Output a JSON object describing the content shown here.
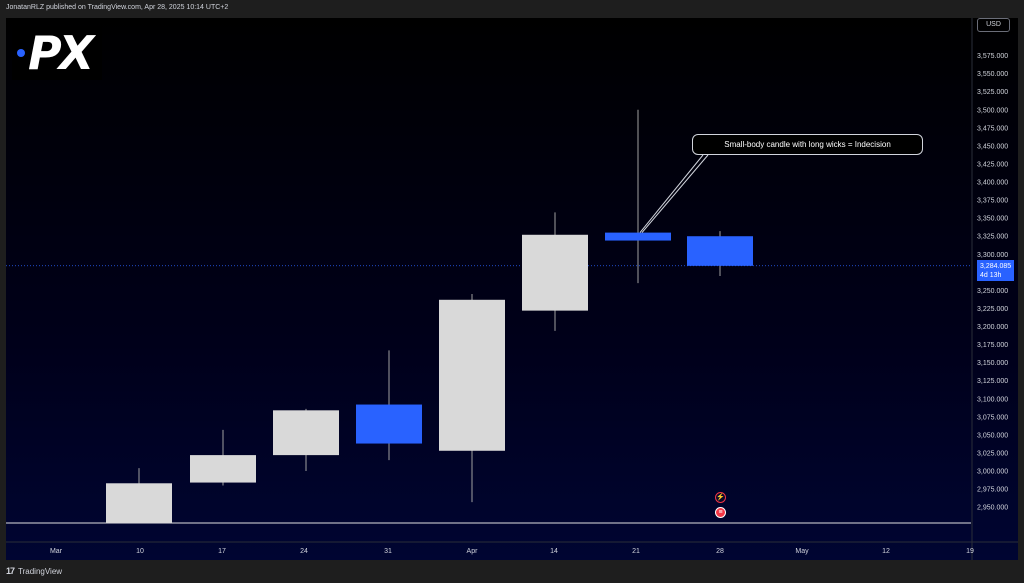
{
  "header": {
    "publisher_text": "JonatanRLZ published on TradingView.com, Apr 28, 2025 10:14 UTC+2"
  },
  "price_scale": {
    "currency": "USD",
    "current_price": "3,284.085",
    "countdown": "4d 13h"
  },
  "logo": {
    "text": "PX",
    "dot_color": "#2962ff"
  },
  "annotation": {
    "text": "Small-body candle with long wicks = Indecision"
  },
  "events": {
    "flash_icon": "lightning-icon",
    "flag_icon": "us-flag-icon"
  },
  "footer": {
    "brand": "TradingView",
    "icon": "tv-logo-icon"
  },
  "colors": {
    "bull_body": "#d9d9d9",
    "bear_body": "#2962ff",
    "wick": "#a0a0a0",
    "axis_text": "#d1d4dc",
    "price_line": "#2962ff"
  },
  "chart_data": {
    "type": "candlestick",
    "timeframe": "weekly",
    "x_labels": [
      "Mar",
      "10",
      "17",
      "24",
      "31",
      "Apr",
      "14",
      "21",
      "28",
      "May",
      "12",
      "19"
    ],
    "y_ticks": [
      2950,
      2975,
      3000,
      3025,
      3050,
      3075,
      3100,
      3125,
      3150,
      3175,
      3200,
      3225,
      3250,
      3275,
      3300,
      3325,
      3350,
      3375,
      3400,
      3425,
      3450,
      3475,
      3500,
      3525,
      3550,
      3575
    ],
    "y_tick_labels": [
      "2,950.000",
      "2,975.000",
      "3,000.000",
      "3,025.000",
      "3,050.000",
      "3,075.000",
      "3,100.000",
      "3,125.000",
      "3,150.000",
      "3,175.000",
      "3,200.000",
      "3,225.000",
      "3,250.000",
      "3,275.000",
      "3,300.000",
      "3,325.000",
      "3,350.000",
      "3,375.000",
      "3,400.000",
      "3,425.000",
      "3,450.000",
      "3,475.000",
      "3,500.000",
      "3,525.000",
      "3,550.000",
      "3,575.000"
    ],
    "ylim": [
      2930,
      3600
    ],
    "last_price": 3284.085,
    "candles": [
      {
        "week": "10",
        "open": 2910,
        "high": 3004,
        "low": 2900,
        "close": 2983
      },
      {
        "week": "17",
        "open": 2984,
        "high": 3057,
        "low": 2980,
        "close": 3022
      },
      {
        "week": "24",
        "open": 3022,
        "high": 3086,
        "low": 3000,
        "close": 3084
      },
      {
        "week": "31",
        "open": 3092,
        "high": 3167,
        "low": 3015,
        "close": 3038
      },
      {
        "week": "Apr",
        "open": 3028,
        "high": 3245,
        "low": 2957,
        "close": 3237
      },
      {
        "week": "14",
        "open": 3222,
        "high": 3358,
        "low": 3194,
        "close": 3327
      },
      {
        "week": "21",
        "open": 3330,
        "high": 3500,
        "low": 3260,
        "close": 3319
      },
      {
        "week": "28",
        "open": 3325,
        "high": 3332,
        "low": 3270,
        "close": 3284
      }
    ]
  }
}
